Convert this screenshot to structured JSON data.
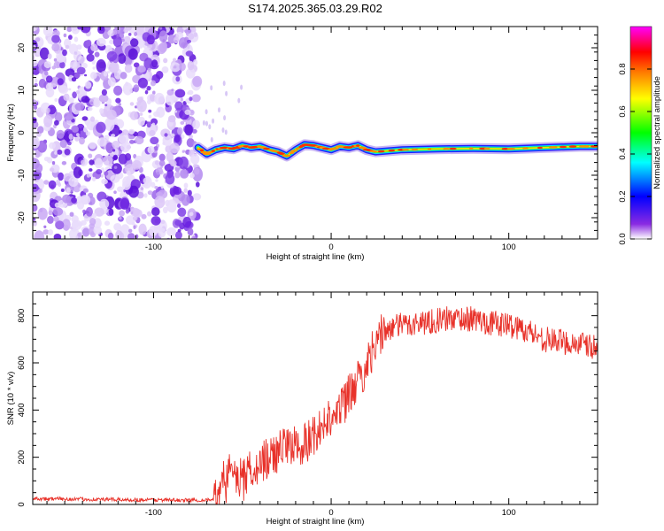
{
  "title": "S174.2025.365.03.29.R02",
  "chart_data": [
    {
      "type": "heatmap",
      "title": "S174.2025.365.03.29.R02",
      "xlabel": "Height of straight line (km)",
      "ylabel": "Frequency (Hz)",
      "xlim": [
        -168,
        150
      ],
      "ylim": [
        -25,
        25
      ],
      "xticks": [
        -100,
        0,
        100
      ],
      "xtick_labels": [
        "-100",
        "0",
        "100"
      ],
      "yticks": [
        -20,
        -10,
        0,
        10,
        20
      ],
      "ytick_labels": [
        "-20",
        "-10",
        "0",
        "10",
        "20"
      ],
      "noise_region_x": [
        -168,
        -75
      ],
      "ridge": {
        "x": [
          -75,
          -70,
          -65,
          -60,
          -55,
          -50,
          -45,
          -40,
          -35,
          -30,
          -25,
          -20,
          -15,
          -10,
          -5,
          0,
          5,
          10,
          15,
          20,
          25,
          40,
          60,
          80,
          100,
          120,
          140,
          150
        ],
        "freq": [
          -3.5,
          -5,
          -4,
          -3.5,
          -3.8,
          -3,
          -3.5,
          -3.2,
          -4,
          -4.5,
          -5.5,
          -4,
          -2.8,
          -3,
          -3.5,
          -4,
          -3.2,
          -3.5,
          -3,
          -4,
          -4.5,
          -4,
          -3.8,
          -3.7,
          -3.8,
          -3.5,
          -3.2,
          -3.2
        ]
      },
      "colorbar": {
        "label": "Normalized spectral amplitude",
        "range": [
          0,
          1
        ],
        "ticks": [
          0.0,
          0.2,
          0.4,
          0.6,
          0.8
        ],
        "tick_labels": [
          "0.0",
          "0.2",
          "0.4",
          "0.6",
          "0.8"
        ],
        "colors": [
          "#ffffff",
          "#8a2be2",
          "#0000ff",
          "#00ffff",
          "#00ff00",
          "#ffff00",
          "#ff8000",
          "#ff0000",
          "#ff00ff"
        ]
      }
    },
    {
      "type": "line",
      "xlabel": "Height of straight line (km)",
      "ylabel": "SNR (10 * v/v)",
      "xlim": [
        -168,
        150
      ],
      "ylim": [
        0,
        900
      ],
      "xticks": [
        -100,
        0,
        100
      ],
      "xtick_labels": [
        "-100",
        "0",
        "100"
      ],
      "yticks": [
        0,
        200,
        400,
        600,
        800
      ],
      "ytick_labels": [
        "0",
        "200",
        "400",
        "600",
        "800"
      ],
      "color": "#e8322a",
      "series": [
        {
          "name": "SNR",
          "x": [
            -168,
            -140,
            -110,
            -80,
            -66,
            -63,
            -60,
            -55,
            -50,
            -45,
            -40,
            -35,
            -30,
            -25,
            -20,
            -15,
            -10,
            -5,
            0,
            5,
            10,
            15,
            20,
            25,
            30,
            40,
            50,
            60,
            70,
            80,
            90,
            100,
            110,
            120,
            130,
            140,
            150
          ],
          "y": [
            25,
            22,
            20,
            18,
            20,
            60,
            120,
            130,
            110,
            150,
            180,
            200,
            220,
            240,
            260,
            250,
            300,
            340,
            380,
            420,
            460,
            520,
            580,
            700,
            740,
            760,
            770,
            780,
            790,
            785,
            770,
            760,
            740,
            700,
            690,
            680,
            660
          ]
        }
      ]
    }
  ]
}
